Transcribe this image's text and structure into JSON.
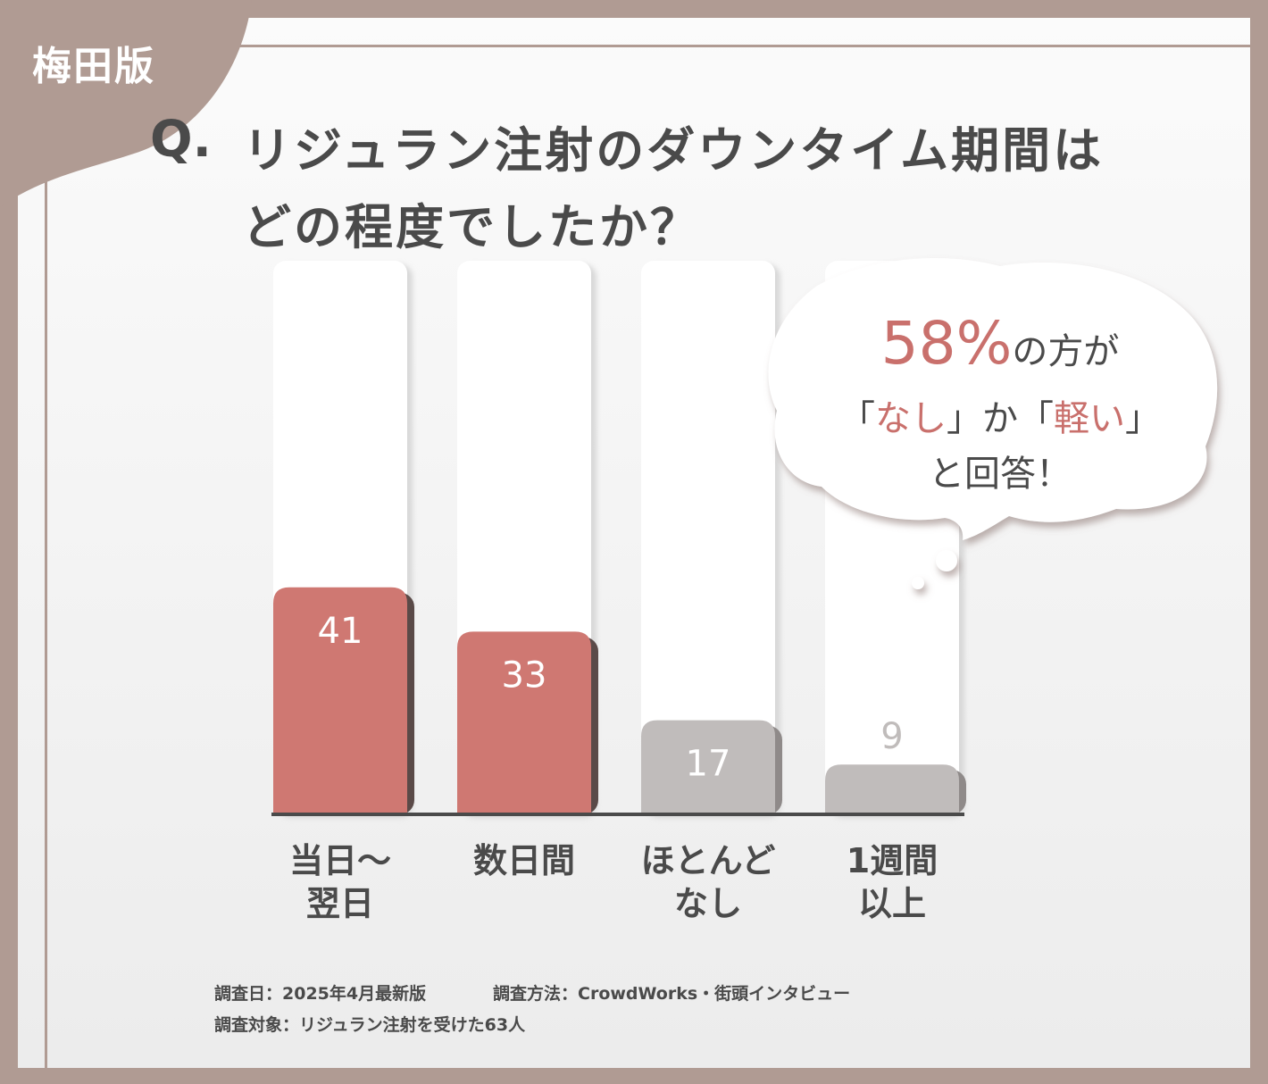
{
  "tag": "梅田版",
  "question": {
    "prefix": "Q.",
    "line1": "リジュラン注射のダウンタイム期間は",
    "line2": "どの程度でしたか？"
  },
  "callout": {
    "pct": "58%",
    "line1_rest": "の方が",
    "q_open1": "「",
    "item1": "なし",
    "q_close1": "」",
    "mid": "か",
    "q_open2": "「",
    "item2": "軽い",
    "q_close2": "」",
    "line3": "と回答！"
  },
  "footer": {
    "date": "調査日：2025年4月最新版",
    "method": "調査方法：CrowdWorks・街頭インタビュー",
    "target": "調査対象：リジュラン注射を受けた63人"
  },
  "colors": {
    "highlight": "#cf7872",
    "muted": "#c0bcbb",
    "frame": "#b09b93",
    "text": "#4a4a4a"
  },
  "chart_data": {
    "type": "bar",
    "categories": [
      "当日〜\n翌日",
      "数日間",
      "ほとんど\nなし",
      "1週間\n以上"
    ],
    "values": [
      41,
      33,
      17,
      9
    ],
    "highlighted": [
      true,
      true,
      false,
      false
    ],
    "ylim": [
      0,
      100
    ]
  }
}
